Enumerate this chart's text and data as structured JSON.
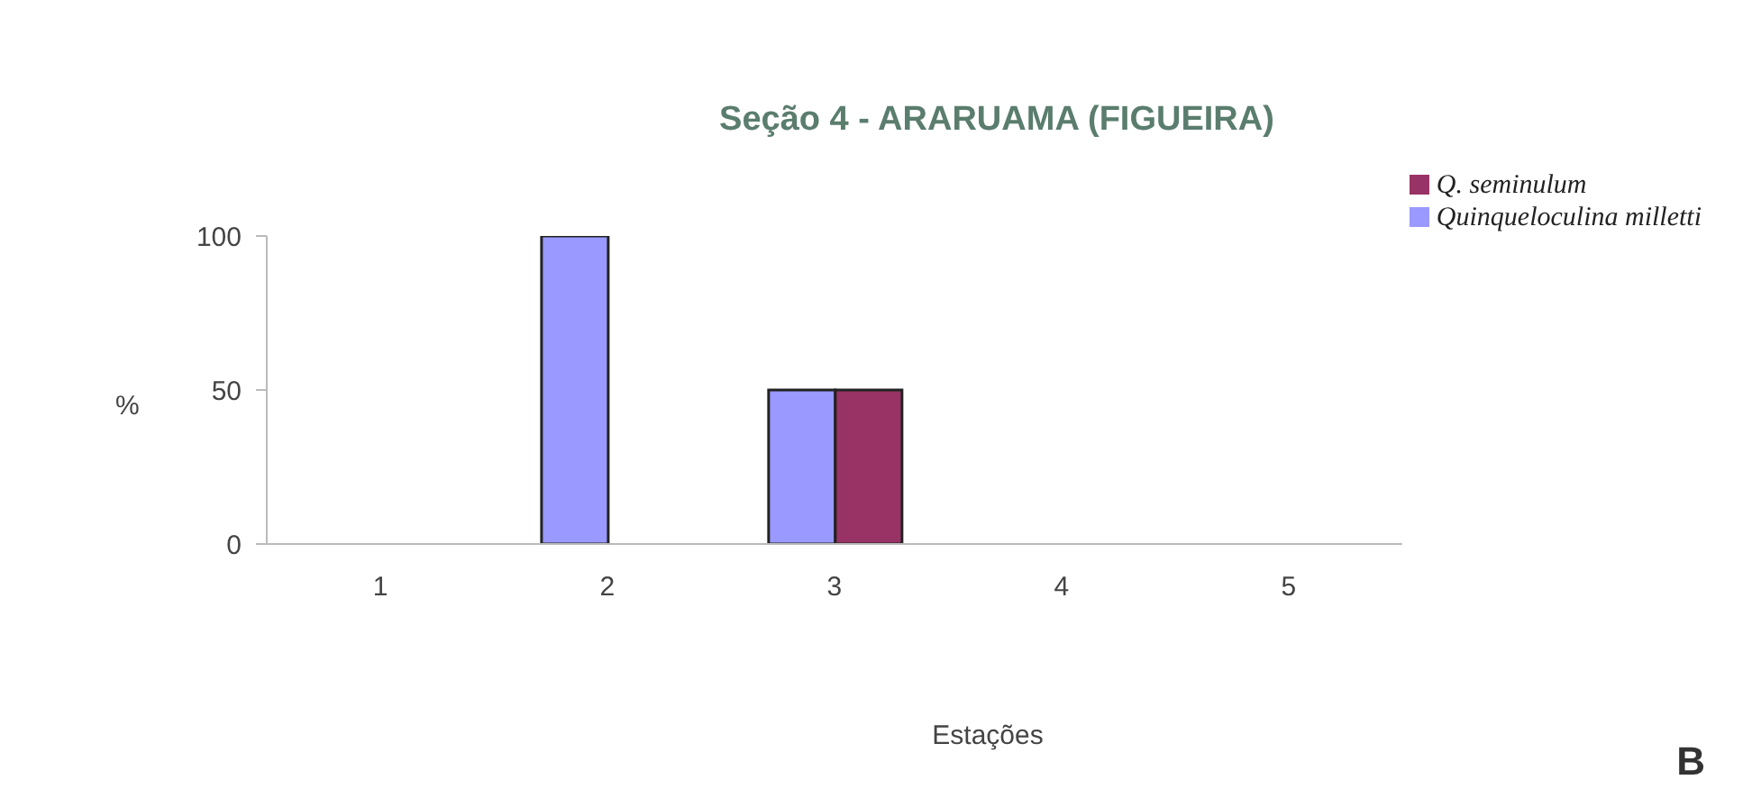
{
  "chart_data": {
    "type": "bar",
    "title": "Seção 4 - ARARUAMA (FIGUEIRA)",
    "xlabel": "Estações",
    "ylabel": "%",
    "categories": [
      "1",
      "2",
      "3",
      "4",
      "5"
    ],
    "series": [
      {
        "name": "Quinqueloculina milletti",
        "color": "#9999ff",
        "values": [
          0,
          100,
          50,
          0,
          0
        ]
      },
      {
        "name": "Q. seminulum",
        "color": "#993366",
        "values": [
          0,
          0,
          50,
          0,
          0
        ]
      }
    ],
    "ylim": [
      0,
      100
    ],
    "yticks": [
      0,
      50,
      100
    ],
    "grid": false,
    "legend": "top right",
    "annotations": [
      "B"
    ]
  }
}
